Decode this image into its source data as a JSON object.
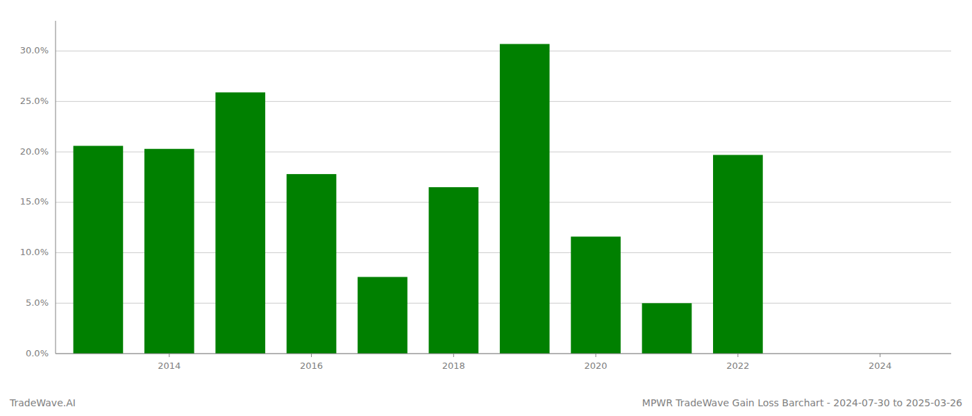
{
  "chart_data": {
    "type": "bar",
    "x": [
      2013,
      2014,
      2015,
      2016,
      2017,
      2018,
      2019,
      2020,
      2021,
      2022
    ],
    "values": [
      0.206,
      0.203,
      0.259,
      0.178,
      0.076,
      0.165,
      0.307,
      0.116,
      0.05,
      0.197
    ],
    "color": "#008000",
    "xlim": [
      2012.4,
      2025.0
    ],
    "xticks": [
      2014,
      2016,
      2018,
      2020,
      2022,
      2024
    ],
    "ylim": [
      0,
      0.33
    ],
    "yticks": [
      {
        "value": 0.0,
        "label": "0.0%"
      },
      {
        "value": 0.05,
        "label": "5.0%"
      },
      {
        "value": 0.1,
        "label": "10.0%"
      },
      {
        "value": 0.15,
        "label": "15.0%"
      },
      {
        "value": 0.2,
        "label": "20.0%"
      },
      {
        "value": 0.25,
        "label": "25.0%"
      },
      {
        "value": 0.3,
        "label": "30.0%"
      }
    ],
    "grid": true,
    "annotations": [
      "TradeWave.AI",
      "MPWR TradeWave Gain Loss Barchart - 2024-07-30 to 2025-03-26"
    ]
  }
}
